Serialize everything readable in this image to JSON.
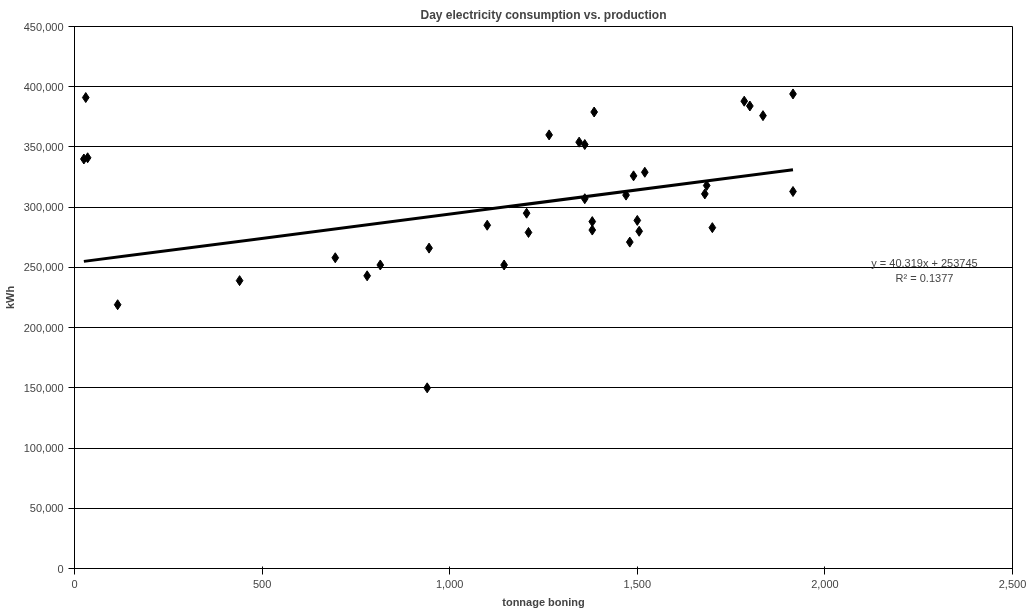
{
  "chart_data": {
    "type": "scatter",
    "title": "Day electricity consumption vs. production",
    "xlabel": "tonnage boning",
    "ylabel": "kWh",
    "xlim": [
      0,
      2500
    ],
    "xticks": [
      0,
      {
        "value": 500,
        "label": "500"
      },
      {
        "value": 1000,
        "label": "1,000"
      },
      {
        "value": 1500,
        "label": "1,500"
      },
      {
        "value": 2000,
        "label": "2,000"
      },
      {
        "value": 2500,
        "label": "2,500"
      }
    ],
    "ylim": [
      0,
      450000
    ],
    "yticks": [
      0,
      {
        "value": 50000,
        "label": "50,000"
      },
      {
        "value": 100000,
        "label": "100,000"
      },
      {
        "value": 150000,
        "label": "150,000"
      },
      {
        "value": 200000,
        "label": "200,000"
      },
      {
        "value": 250000,
        "label": "250,000"
      },
      {
        "value": 300000,
        "label": "300,000"
      },
      {
        "value": 350000,
        "label": "350,000"
      },
      {
        "value": 400000,
        "label": "400,000"
      },
      {
        "value": 450000,
        "label": "450,000"
      }
    ],
    "grid": "y",
    "marker": "diamond",
    "series": [
      {
        "color": "#000000",
        "x": [
          30,
          25,
          35,
          115,
          440,
          695,
          780,
          815,
          940,
          945,
          1100,
          1145,
          1205,
          1210,
          1265,
          1345,
          1360,
          1360,
          1380,
          1380,
          1385,
          1470,
          1480,
          1490,
          1500,
          1505,
          1520,
          1680,
          1685,
          1700,
          1785,
          1800,
          1835,
          1915,
          1915
        ],
        "values": [
          391000,
          340000,
          341000,
          219000,
          239000,
          258000,
          243000,
          252000,
          150000,
          266000,
          285000,
          252000,
          295000,
          279000,
          360000,
          354000,
          352000,
          307000,
          288000,
          281000,
          379000,
          310000,
          271000,
          326000,
          289000,
          280000,
          329000,
          311000,
          318000,
          283000,
          388000,
          384000,
          376000,
          394000,
          313000
        ]
      },
      {
        "type": "line",
        "marker": "none",
        "color": "#000000",
        "x": [
          25,
          1915
        ],
        "values": [
          255000,
          331000
        ]
      }
    ],
    "annotations": [
      "y = 40.319x + 253745\nR² = 0.1377"
    ]
  }
}
